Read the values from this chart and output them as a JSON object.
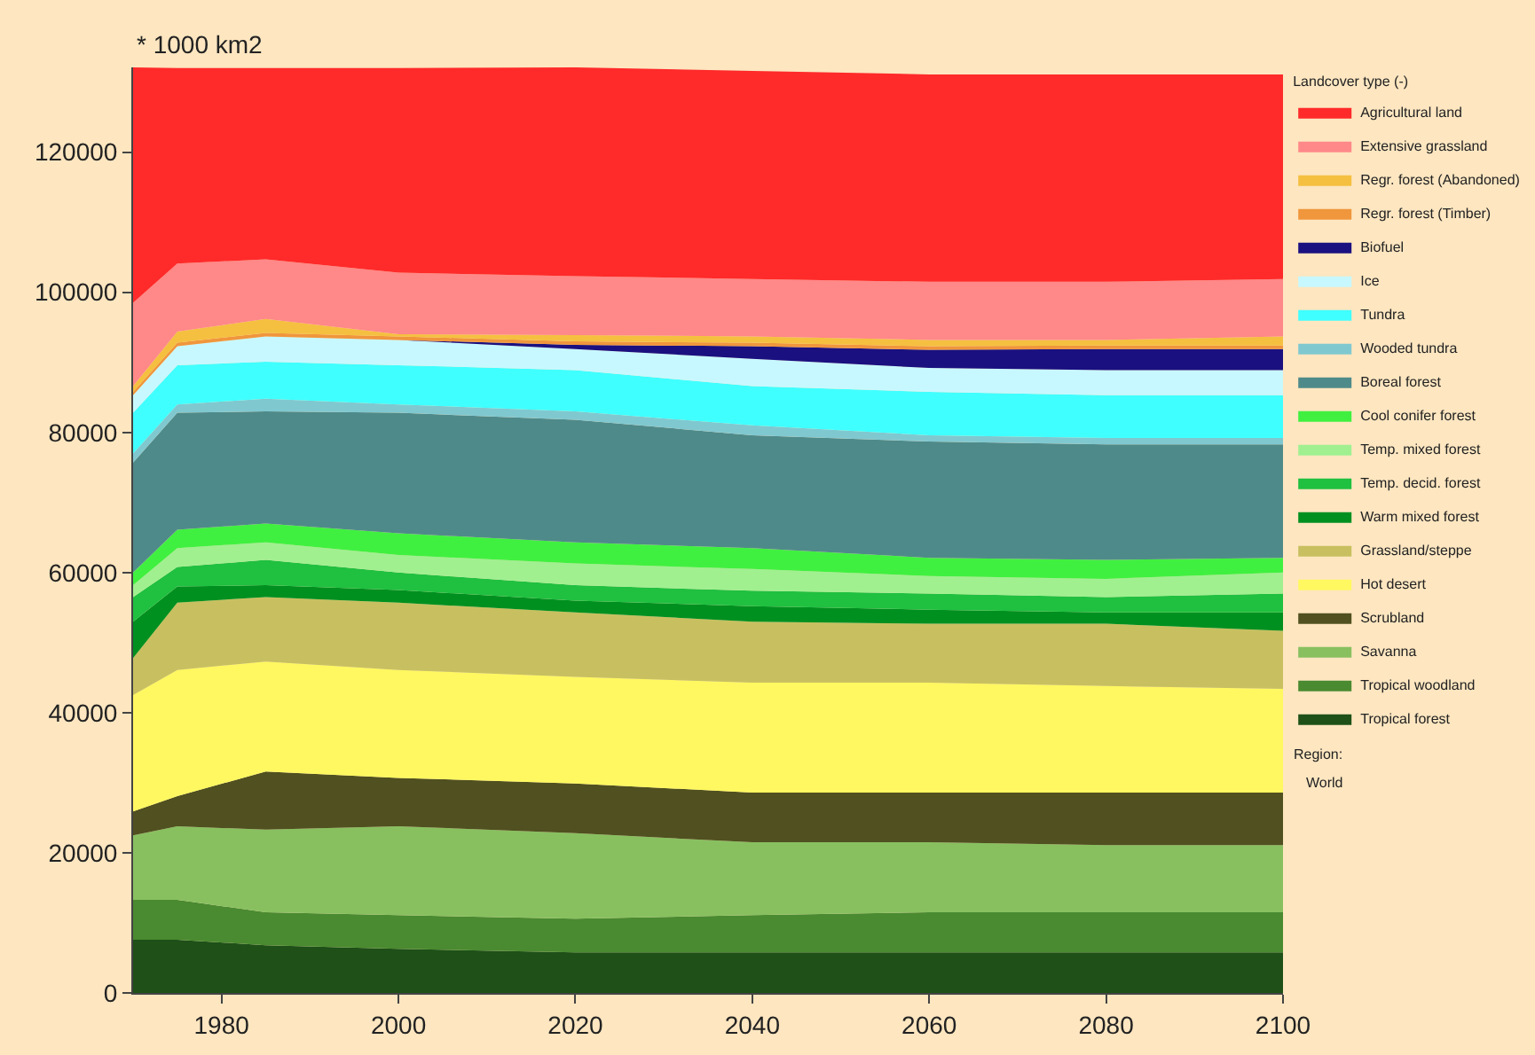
{
  "chart_data": {
    "type": "area",
    "stacked": true,
    "ylabel": "* 1000 km2",
    "legend_title": "Landcover type (-)",
    "annotations": [
      "Region:",
      "World"
    ],
    "x": [
      1970,
      1975,
      1985,
      2000,
      2020,
      2040,
      2060,
      2080,
      2100
    ],
    "xlim": [
      1970,
      2100
    ],
    "xticks": [
      1980,
      2000,
      2020,
      2040,
      2060,
      2080,
      2100
    ],
    "ylim": [
      0,
      132100
    ],
    "yticks": [
      0,
      20000,
      40000,
      60000,
      80000,
      100000,
      120000
    ],
    "grid": false,
    "legend": "right",
    "series": [
      {
        "name": "Tropical forest",
        "color": "#1e5018",
        "values": [
          7600,
          7600,
          6800,
          6300,
          5800,
          5800,
          5800,
          5800,
          5800
        ]
      },
      {
        "name": "Tropical woodland",
        "color": "#4a8a30",
        "values": [
          5700,
          5700,
          4700,
          4800,
          4800,
          5300,
          5700,
          5700,
          5700
        ]
      },
      {
        "name": "Savanna",
        "color": "#88c060",
        "values": [
          9200,
          10500,
          11800,
          12700,
          12200,
          10400,
          10000,
          9600,
          9600
        ]
      },
      {
        "name": "Scrubland",
        "color": "#505020",
        "values": [
          3400,
          4300,
          8300,
          6900,
          7100,
          7100,
          7100,
          7500,
          7500
        ]
      },
      {
        "name": "Hot desert",
        "color": "#fff860",
        "values": [
          16600,
          18000,
          15700,
          15400,
          15200,
          15700,
          15700,
          15200,
          14800
        ]
      },
      {
        "name": "Grassland/steppe",
        "color": "#c8c060",
        "values": [
          5300,
          9600,
          9200,
          9600,
          9200,
          8700,
          8400,
          8900,
          8300
        ]
      },
      {
        "name": "Warm mixed forest",
        "color": "#009020",
        "values": [
          5200,
          2300,
          1700,
          1800,
          1700,
          2200,
          2000,
          1600,
          2600
        ]
      },
      {
        "name": "Temp. decid. forest",
        "color": "#20c040",
        "values": [
          3500,
          2800,
          3600,
          2500,
          2200,
          2200,
          2300,
          2200,
          2700
        ]
      },
      {
        "name": "Temp. mixed forest",
        "color": "#a0f090",
        "values": [
          1700,
          2700,
          2500,
          2500,
          3100,
          3100,
          2500,
          2600,
          3000
        ]
      },
      {
        "name": "Cool conifer forest",
        "color": "#40f040",
        "values": [
          1800,
          2600,
          2700,
          3100,
          3000,
          3000,
          2600,
          2700,
          2100
        ]
      },
      {
        "name": "Boreal forest",
        "color": "#4f8a8a",
        "values": [
          15700,
          16700,
          16000,
          17200,
          17500,
          16100,
          16600,
          16500,
          16200
        ]
      },
      {
        "name": "Wooded tundra",
        "color": "#80c8d0",
        "values": [
          1300,
          1200,
          1800,
          1200,
          1200,
          1400,
          900,
          900,
          900
        ]
      },
      {
        "name": "Tundra",
        "color": "#40ffff",
        "values": [
          5800,
          5600,
          5300,
          5600,
          5900,
          5600,
          6200,
          6100,
          6100
        ]
      },
      {
        "name": "Ice",
        "color": "#c8f8ff",
        "values": [
          2500,
          2700,
          3600,
          3600,
          3000,
          3900,
          3400,
          3600,
          3600
        ]
      },
      {
        "name": "Biofuel",
        "color": "#1a1080",
        "values": [
          0,
          0,
          0,
          0,
          600,
          1800,
          2600,
          3000,
          3000
        ]
      },
      {
        "name": "Regr. forest (Timber)",
        "color": "#f0963c",
        "values": [
          500,
          500,
          500,
          500,
          500,
          500,
          500,
          500,
          500
        ]
      },
      {
        "name": "Regr. forest (Abandoned)",
        "color": "#f5c040",
        "values": [
          800,
          1600,
          2000,
          300,
          900,
          900,
          900,
          800,
          1300
        ]
      },
      {
        "name": "Extensive grassland",
        "color": "#ff8888",
        "values": [
          11900,
          9700,
          8500,
          8800,
          8400,
          8200,
          8300,
          8300,
          8200
        ]
      },
      {
        "name": "Agricultural land",
        "color": "#ff2a2a",
        "values": [
          33600,
          27900,
          27300,
          29200,
          29800,
          29700,
          29600,
          29600,
          29200
        ]
      }
    ]
  }
}
